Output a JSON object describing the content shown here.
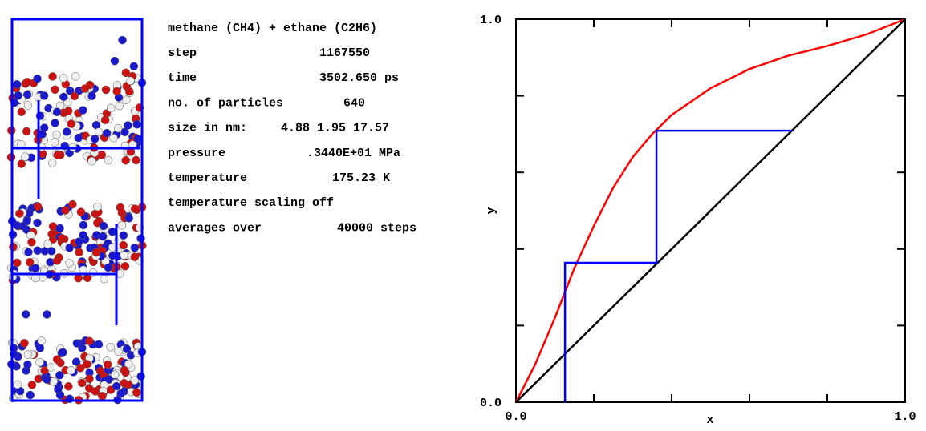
{
  "info": {
    "title": "methane (CH4) + ethane (C2H6)",
    "rows": [
      {
        "label": "step",
        "value": "1167550"
      },
      {
        "label": "time",
        "value": "3502.650 ps"
      },
      {
        "label": "no. of particles",
        "value": "640"
      },
      {
        "label": "size in nm:",
        "value": "4.88  1.95 17.57"
      },
      {
        "label": "pressure",
        "value": ".3440E+01 MPa"
      },
      {
        "label": "temperature",
        "value": "175.23 K"
      },
      {
        "label": "temperature scaling off"
      },
      {
        "label": "averages over",
        "value": "40000 steps"
      }
    ]
  },
  "chart_data": {
    "type": "line",
    "x_label": "x",
    "y_label": "y",
    "xlim": [
      0,
      1
    ],
    "ylim": [
      0,
      1
    ],
    "xticks": [
      {
        "value": 0,
        "label": "0.0"
      },
      {
        "value": 1,
        "label": "1.0"
      }
    ],
    "yticks": [
      {
        "value": 0,
        "label": "0.0"
      },
      {
        "value": 1,
        "label": "1.0"
      }
    ],
    "xminor_ticks": [
      0.2,
      0.4,
      0.6,
      0.8
    ],
    "yminor_ticks": [
      0.2,
      0.4,
      0.6,
      0.8
    ],
    "series": [
      {
        "color": "#ff0000",
        "x": [
          0,
          0.05,
          0.1,
          0.15,
          0.2,
          0.25,
          0.3,
          0.35,
          0.4,
          0.5,
          0.6,
          0.7,
          0.8,
          0.9,
          1
        ],
        "values": [
          0,
          0.1,
          0.22,
          0.35,
          0.46,
          0.56,
          0.64,
          0.7,
          0.75,
          0.82,
          0.87,
          0.905,
          0.93,
          0.96,
          1
        ]
      },
      {
        "color": "#000000",
        "x": [
          0,
          1
        ],
        "values": [
          0,
          1
        ]
      },
      {
        "color": "#0000ff",
        "x": [
          0.126,
          0.126,
          0.361,
          0.361,
          0.709
        ],
        "values": [
          0,
          0.364,
          0.364,
          0.709,
          0.709
        ]
      }
    ]
  }
}
